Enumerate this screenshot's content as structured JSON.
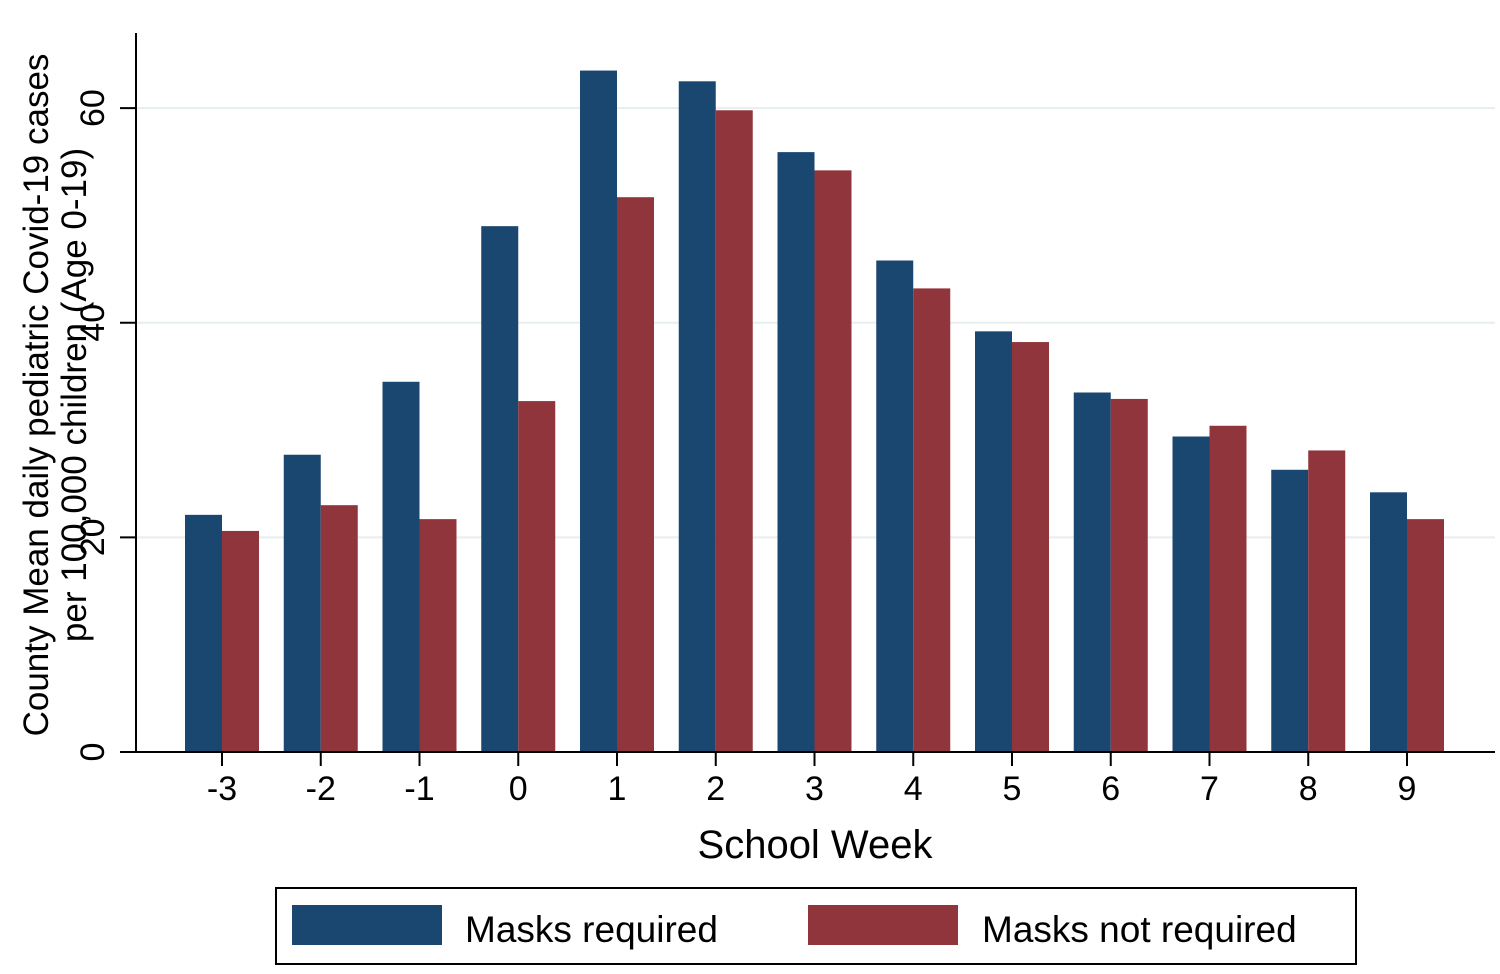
{
  "chart_data": {
    "type": "bar",
    "xlabel": "School Week",
    "ylabel_line1": "County Mean daily pediatric Covid-19 cases",
    "ylabel_line2": "per 100,000 children (Age 0-19)",
    "categories": [
      "-3",
      "-2",
      "-1",
      "0",
      "1",
      "2",
      "3",
      "4",
      "5",
      "6",
      "7",
      "8",
      "9"
    ],
    "ylim": [
      0,
      67
    ],
    "yticks": [
      0,
      20,
      40,
      60
    ],
    "grid": true,
    "legend_position": "bottom",
    "series": [
      {
        "name": "Masks required",
        "color": "#1a476f",
        "values": [
          22.1,
          27.7,
          34.5,
          49.0,
          63.5,
          62.5,
          55.9,
          45.8,
          39.2,
          33.5,
          29.4,
          26.3,
          24.2
        ]
      },
      {
        "name": "Masks not required",
        "color": "#90353b",
        "values": [
          20.6,
          23.0,
          21.7,
          32.7,
          51.7,
          59.8,
          54.2,
          43.2,
          38.2,
          32.9,
          30.4,
          28.1,
          21.7
        ]
      }
    ]
  }
}
